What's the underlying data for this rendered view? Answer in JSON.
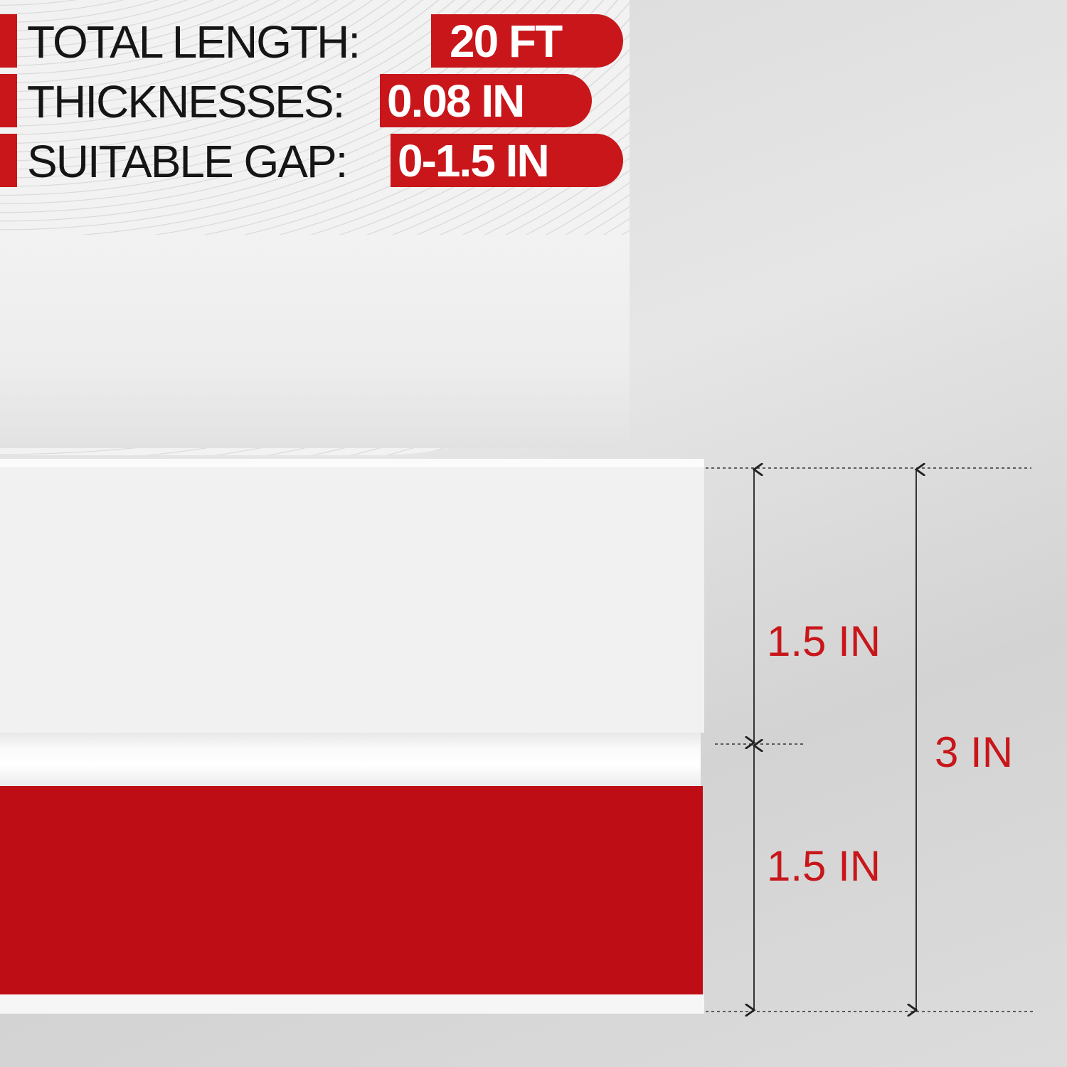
{
  "specs": [
    {
      "label": "TOTAL LENGTH:",
      "value": "20 FT"
    },
    {
      "label": "THICKNESSES:",
      "value": "0.08 IN"
    },
    {
      "label": "SUITABLE GAP:",
      "value": "0-1.5 IN"
    }
  ],
  "dimensions": {
    "upper_height": "1.5 IN",
    "lower_height": "1.5 IN",
    "total_height": "3 IN"
  },
  "colors": {
    "accent": "#c8161a",
    "adhesive_backing": "#bf0d15",
    "strip": "#f1f1f1"
  }
}
